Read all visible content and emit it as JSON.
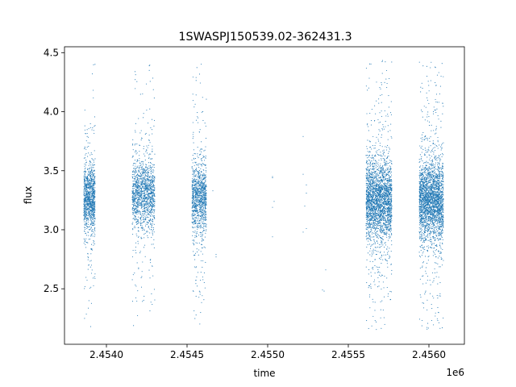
{
  "chart_data": {
    "type": "scatter",
    "title": "1SWASPJ150539.02-362431.3",
    "xlabel": "time",
    "ylabel": "flux",
    "x_offset_label": "1e6",
    "xlim": [
      2.45374,
      2.45622
    ],
    "ylim": [
      2.03,
      4.55
    ],
    "x_ticks": [
      2.454,
      2.4545,
      2.455,
      2.4555,
      2.456
    ],
    "x_tick_labels": [
      "2.4540",
      "2.4545",
      "2.4550",
      "2.4555",
      "2.4560"
    ],
    "y_ticks": [
      2.5,
      3.0,
      3.5,
      4.0,
      4.5
    ],
    "y_tick_labels": [
      "2.5",
      "3.0",
      "3.5",
      "4.0",
      "4.5"
    ],
    "point_color": "#1f77b4",
    "clusters": [
      {
        "x_start": 2.45386,
        "x_end": 2.45393,
        "y_center": 3.27,
        "y_spread": 0.25,
        "y_min": 2.15,
        "y_max": 4.43,
        "count": 1100
      },
      {
        "x_start": 2.45416,
        "x_end": 2.4543,
        "y_center": 3.3,
        "y_spread": 0.25,
        "y_min": 2.18,
        "y_max": 4.4,
        "count": 1400
      },
      {
        "x_start": 2.45453,
        "x_end": 2.45462,
        "y_center": 3.27,
        "y_spread": 0.25,
        "y_min": 2.18,
        "y_max": 4.43,
        "count": 1100
      },
      {
        "x_start": 2.45561,
        "x_end": 2.45577,
        "y_center": 3.25,
        "y_spread": 0.3,
        "y_min": 2.15,
        "y_max": 4.44,
        "count": 2600
      },
      {
        "x_start": 2.45594,
        "x_end": 2.45609,
        "y_center": 3.25,
        "y_spread": 0.3,
        "y_min": 2.15,
        "y_max": 4.42,
        "count": 2600
      }
    ],
    "isolated_points": [
      [
        2.45466,
        3.33
      ],
      [
        2.45468,
        2.77
      ],
      [
        2.45468,
        2.79
      ],
      [
        2.45503,
        3.44
      ],
      [
        2.45503,
        3.45
      ],
      [
        2.45503,
        3.19
      ],
      [
        2.45504,
        3.24
      ],
      [
        2.45503,
        2.94
      ],
      [
        2.45522,
        3.79
      ],
      [
        2.45522,
        3.47
      ],
      [
        2.45523,
        3.2
      ],
      [
        2.45524,
        3.38
      ],
      [
        2.45524,
        3.31
      ],
      [
        2.45522,
        2.98
      ],
      [
        2.45524,
        3.01
      ],
      [
        2.45534,
        2.49
      ],
      [
        2.45535,
        2.48
      ],
      [
        2.45536,
        2.66
      ]
    ]
  }
}
